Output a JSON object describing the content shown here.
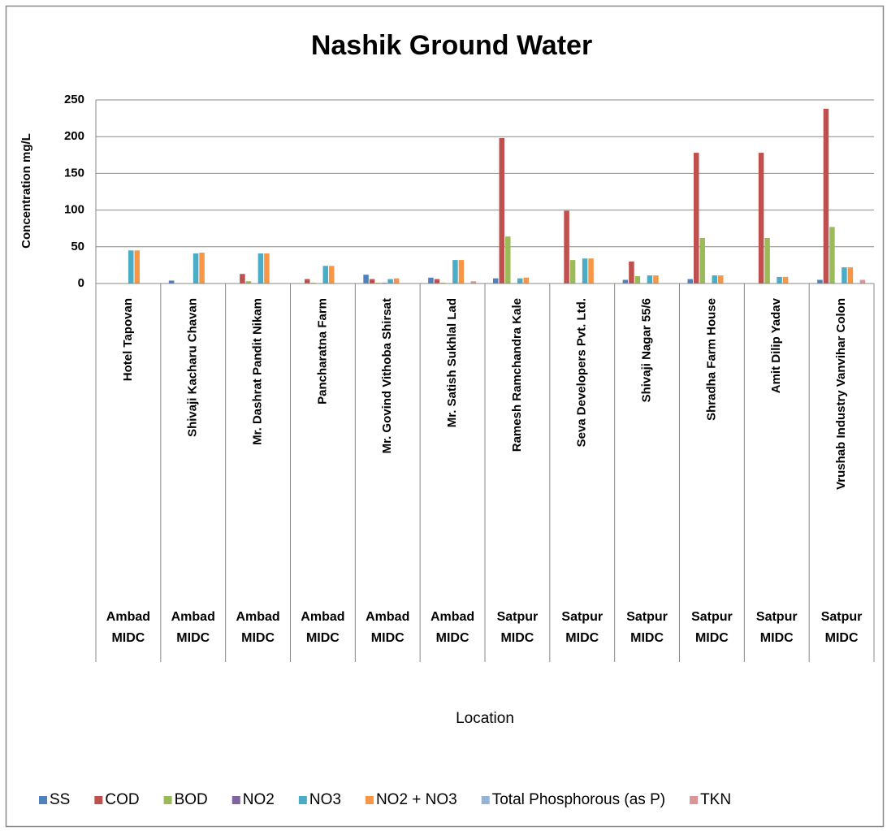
{
  "chart_data": {
    "type": "bar",
    "title": "Nashik Ground Water",
    "y_label": "Concentration mg/L",
    "x_label": "Location",
    "categories": [
      "Hotel Tapovan",
      "Shivaji Kacharu Chavan",
      "Mr. Dashrat Pandit Nikam",
      "Pancharatna Farm",
      "Mr. Govind Vithoba Shirsat",
      "Mr. Satish Sukhlal Lad",
      "Ramesh Ramchandra Kale",
      "Seva Developers Pvt. Ltd.",
      "Shivaji Nagar 55/6",
      "Shradha Farm House",
      "Amit Dilip Yadav",
      "Vrushab Industry Vanvihar Colon"
    ],
    "groups": [
      "Ambad MIDC",
      "Ambad MIDC",
      "Ambad MIDC",
      "Ambad MIDC",
      "Ambad MIDC",
      "Ambad MIDC",
      "Satpur MIDC",
      "Satpur MIDC",
      "Satpur MIDC",
      "Satpur MIDC",
      "Satpur MIDC",
      "Satpur MIDC"
    ],
    "series": [
      {
        "name": "SS",
        "color": "#4f81bd",
        "values": [
          0,
          4,
          0,
          0,
          12,
          8,
          7,
          0,
          5,
          6,
          0,
          5
        ]
      },
      {
        "name": "COD",
        "color": "#c0504d",
        "values": [
          0,
          0,
          13,
          6,
          6,
          6,
          198,
          99,
          30,
          178,
          178,
          238
        ]
      },
      {
        "name": "BOD",
        "color": "#9bbb59",
        "values": [
          0,
          0,
          3,
          1,
          1,
          1,
          64,
          32,
          10,
          62,
          62,
          77
        ]
      },
      {
        "name": "NO2",
        "color": "#8064a2",
        "values": [
          0,
          0,
          0,
          0,
          1,
          0,
          0,
          0,
          0,
          0,
          0,
          0
        ]
      },
      {
        "name": "NO3",
        "color": "#4bacc6",
        "values": [
          45,
          41,
          41,
          24,
          6,
          32,
          7,
          34,
          11,
          11,
          9,
          22
        ]
      },
      {
        "name": "NO2 + NO3",
        "color": "#f79646",
        "values": [
          45,
          42,
          41,
          24,
          7,
          32,
          8,
          34,
          11,
          11,
          9,
          22
        ]
      },
      {
        "name": "Total Phosphorous (as P)",
        "color": "#95b3d7",
        "values": [
          0,
          0,
          0,
          0,
          0,
          0,
          0,
          0,
          0,
          0,
          0,
          0
        ]
      },
      {
        "name": "TKN",
        "color": "#d99694",
        "values": [
          0,
          0,
          0,
          0,
          0,
          3,
          0,
          0,
          0,
          0,
          0,
          5
        ]
      }
    ],
    "ylim": [
      0,
      250
    ],
    "yticks": [
      0,
      50,
      100,
      150,
      200,
      250
    ],
    "grid": true
  }
}
